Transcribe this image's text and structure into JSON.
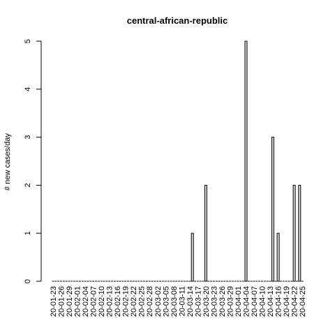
{
  "chart_data": {
    "type": "bar",
    "title": "central-african-republic",
    "xlabel": "",
    "ylabel": "# new cases/day",
    "ylim": [
      0,
      5
    ],
    "yticks": [
      0,
      1,
      2,
      3,
      4,
      5
    ],
    "categories": [
      "20-01-23",
      "20-01-24",
      "20-01-25",
      "20-01-26",
      "20-01-27",
      "20-01-28",
      "20-01-29",
      "20-01-30",
      "20-01-31",
      "20-02-01",
      "20-02-02",
      "20-02-03",
      "20-02-04",
      "20-02-05",
      "20-02-06",
      "20-02-07",
      "20-02-08",
      "20-02-09",
      "20-02-10",
      "20-02-11",
      "20-02-12",
      "20-02-13",
      "20-02-14",
      "20-02-15",
      "20-02-16",
      "20-02-17",
      "20-02-18",
      "20-02-19",
      "20-02-20",
      "20-02-21",
      "20-02-22",
      "20-02-23",
      "20-02-24",
      "20-02-25",
      "20-02-26",
      "20-02-27",
      "20-02-28",
      "20-02-29",
      "20-03-01",
      "20-03-02",
      "20-03-03",
      "20-03-04",
      "20-03-05",
      "20-03-06",
      "20-03-07",
      "20-03-08",
      "20-03-09",
      "20-03-10",
      "20-03-11",
      "20-03-12",
      "20-03-13",
      "20-03-14",
      "20-03-15",
      "20-03-16",
      "20-03-17",
      "20-03-18",
      "20-03-19",
      "20-03-20",
      "20-03-21",
      "20-03-22",
      "20-03-23",
      "20-03-24",
      "20-03-25",
      "20-03-26",
      "20-03-27",
      "20-03-28",
      "20-03-29",
      "20-03-30",
      "20-03-31",
      "20-04-01",
      "20-04-02",
      "20-04-03",
      "20-04-04",
      "20-04-05",
      "20-04-06",
      "20-04-07",
      "20-04-08",
      "20-04-09",
      "20-04-10",
      "20-04-11",
      "20-04-12",
      "20-04-13",
      "20-04-14",
      "20-04-15",
      "20-04-16",
      "20-04-17",
      "20-04-18",
      "20-04-19",
      "20-04-20",
      "20-04-21",
      "20-04-22",
      "20-04-23",
      "20-04-24",
      "20-04-25"
    ],
    "visible_tick_labels": [
      "20-01-23",
      "20-01-26",
      "20-01-29",
      "20-02-01",
      "20-02-04",
      "20-02-07",
      "20-02-10",
      "20-02-13",
      "20-02-16",
      "20-02-19",
      "20-02-22",
      "20-02-25",
      "20-02-28",
      "20-03-02",
      "20-03-05",
      "20-03-08",
      "20-03-11",
      "20-03-14",
      "20-03-17",
      "20-03-20",
      "20-03-23",
      "20-03-26",
      "20-03-29",
      "20-04-01",
      "20-04-04",
      "20-04-07",
      "20-04-10",
      "20-04-13",
      "20-04-16",
      "20-04-19",
      "20-04-22",
      "20-04-25"
    ],
    "values": [
      0,
      0,
      0,
      0,
      0,
      0,
      0,
      0,
      0,
      0,
      0,
      0,
      0,
      0,
      0,
      0,
      0,
      0,
      0,
      0,
      0,
      0,
      0,
      0,
      0,
      0,
      0,
      0,
      0,
      0,
      0,
      0,
      0,
      0,
      0,
      0,
      0,
      0,
      0,
      0,
      0,
      0,
      0,
      0,
      0,
      0,
      0,
      0,
      0,
      0,
      0,
      0,
      1,
      0,
      0,
      0,
      0,
      2,
      0,
      0,
      0,
      0,
      0,
      0,
      0,
      0,
      0,
      0,
      0,
      0,
      0,
      0,
      5,
      0,
      0,
      0,
      0,
      0,
      0,
      0,
      0,
      0,
      3,
      0,
      1,
      0,
      0,
      0,
      0,
      0,
      2,
      0,
      2,
      0
    ],
    "bar_fill": "#d9d9d9",
    "bar_stroke": "#000000",
    "grid": false,
    "legend": "none"
  }
}
